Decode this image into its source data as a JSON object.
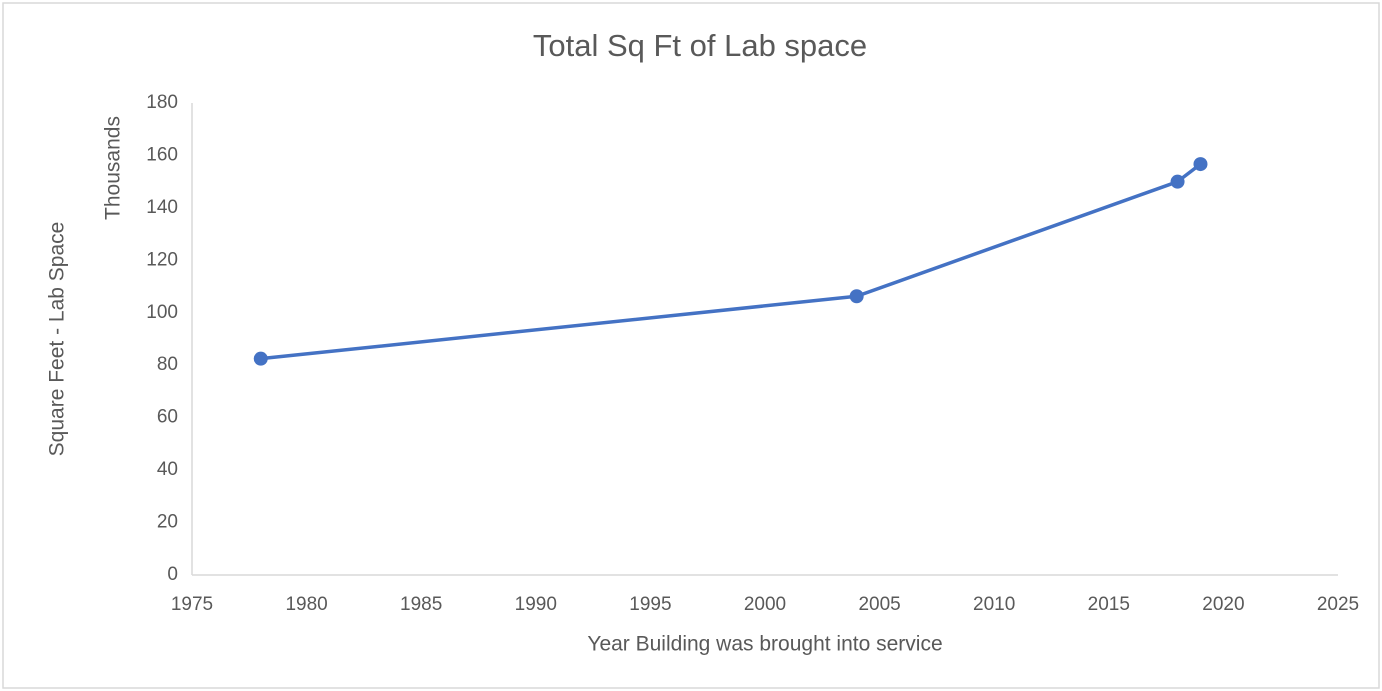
{
  "chart_data": {
    "type": "line",
    "title": "Total Sq Ft of Lab space",
    "x_label": "Year Building was brought into service",
    "y_label": "Square Feet - Lab Space",
    "y_unit_label": "Thousands",
    "x": [
      1978,
      2004,
      2018,
      2019
    ],
    "series": [
      {
        "name": "Square Feet - Lab Space",
        "color": "#4472c4",
        "values": [
          82.5,
          106.3,
          150,
          156.7
        ]
      }
    ],
    "xlim": [
      1975,
      2025
    ],
    "xticks": [
      1975,
      1980,
      1985,
      1990,
      1995,
      2000,
      2005,
      2010,
      2015,
      2020,
      2025
    ],
    "ylim": [
      0,
      180
    ],
    "yticks": [
      0,
      20,
      40,
      60,
      80,
      100,
      120,
      140,
      160,
      180
    ],
    "grid": false,
    "legend": false
  }
}
